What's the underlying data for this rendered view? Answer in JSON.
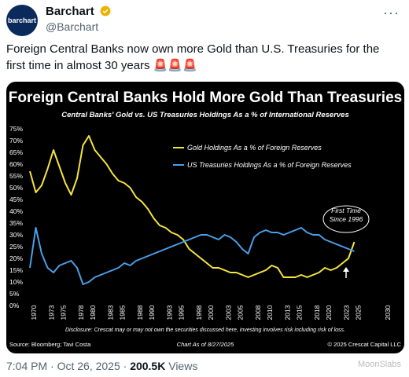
{
  "tweet": {
    "avatar_text": "barchart",
    "display_name": "Barchart",
    "handle": "@Barchart",
    "text": "Foreign Central Banks now own more Gold than U.S. Treasuries for the first time in almost 30 years",
    "emoji": "🚨🚨🚨",
    "timestamp": "7:04 PM · Oct 26, 2025 · ",
    "views_count": "200.5K",
    "views_label": " Views",
    "watermark": "MoonSlabs"
  },
  "colors": {
    "gold": "#f5e63a",
    "treasury": "#4a9fe8",
    "verified": "#e8b200"
  },
  "chart_data": {
    "type": "line",
    "title": "Foreign Central Banks Hold More Gold Than Treasuries",
    "subtitle": "Central Banks' Gold vs. US Treasuries Holdings As a % of International Reserves",
    "xlabel": "",
    "ylabel": "",
    "xlim": [
      1970,
      2030
    ],
    "ylim": [
      0,
      75
    ],
    "x_ticks": [
      "1970",
      "1973",
      "1975",
      "1978",
      "1980",
      "1983",
      "1985",
      "1988",
      "1990",
      "1993",
      "1995",
      "1998",
      "2000",
      "2003",
      "2005",
      "2008",
      "2010",
      "2013",
      "2015",
      "2018",
      "2020",
      "2023",
      "2025",
      "2030"
    ],
    "y_ticks": [
      "0%",
      "5%",
      "10%",
      "15%",
      "20%",
      "25%",
      "30%",
      "35%",
      "40%",
      "45%",
      "50%",
      "55%",
      "60%",
      "65%",
      "70%",
      "75%"
    ],
    "legend": [
      "Gold Holdings As a % of Foreign Reserves",
      "US Treasuries Holdings As a % of Foreign Reserves"
    ],
    "series": [
      {
        "name": "Gold Holdings As a % of Foreign Reserves",
        "points": [
          [
            1970,
            57
          ],
          [
            1971,
            48
          ],
          [
            1972,
            51
          ],
          [
            1973,
            58
          ],
          [
            1974,
            66
          ],
          [
            1975,
            59
          ],
          [
            1976,
            52
          ],
          [
            1977,
            47
          ],
          [
            1978,
            54
          ],
          [
            1979,
            68
          ],
          [
            1980,
            72
          ],
          [
            1981,
            66
          ],
          [
            1982,
            63
          ],
          [
            1983,
            60
          ],
          [
            1984,
            56
          ],
          [
            1985,
            53
          ],
          [
            1986,
            52
          ],
          [
            1987,
            50
          ],
          [
            1988,
            46
          ],
          [
            1989,
            44
          ],
          [
            1990,
            41
          ],
          [
            1991,
            37
          ],
          [
            1992,
            34
          ],
          [
            1993,
            33
          ],
          [
            1994,
            31
          ],
          [
            1995,
            30
          ],
          [
            1996,
            28
          ],
          [
            1997,
            24
          ],
          [
            1998,
            22
          ],
          [
            1999,
            20
          ],
          [
            2000,
            18
          ],
          [
            2001,
            16
          ],
          [
            2002,
            16
          ],
          [
            2003,
            15
          ],
          [
            2004,
            14
          ],
          [
            2005,
            14
          ],
          [
            2006,
            13
          ],
          [
            2007,
            12
          ],
          [
            2008,
            13
          ],
          [
            2009,
            14
          ],
          [
            2010,
            15
          ],
          [
            2011,
            17
          ],
          [
            2012,
            16
          ],
          [
            2013,
            12
          ],
          [
            2014,
            12
          ],
          [
            2015,
            12
          ],
          [
            2016,
            13
          ],
          [
            2017,
            12
          ],
          [
            2018,
            13
          ],
          [
            2019,
            14
          ],
          [
            2020,
            16
          ],
          [
            2021,
            15
          ],
          [
            2022,
            16
          ],
          [
            2023,
            18
          ],
          [
            2024,
            20
          ],
          [
            2025,
            27
          ]
        ]
      },
      {
        "name": "US Treasuries Holdings As a % of Foreign Reserves",
        "points": [
          [
            1970,
            16
          ],
          [
            1971,
            33
          ],
          [
            1972,
            22
          ],
          [
            1973,
            16
          ],
          [
            1974,
            14
          ],
          [
            1975,
            17
          ],
          [
            1976,
            18
          ],
          [
            1977,
            19
          ],
          [
            1978,
            16
          ],
          [
            1979,
            9
          ],
          [
            1980,
            10
          ],
          [
            1981,
            12
          ],
          [
            1982,
            13
          ],
          [
            1983,
            14
          ],
          [
            1984,
            15
          ],
          [
            1985,
            16
          ],
          [
            1986,
            18
          ],
          [
            1987,
            17
          ],
          [
            1988,
            19
          ],
          [
            1989,
            20
          ],
          [
            1990,
            21
          ],
          [
            1991,
            22
          ],
          [
            1992,
            23
          ],
          [
            1993,
            24
          ],
          [
            1994,
            25
          ],
          [
            1995,
            26
          ],
          [
            1996,
            27
          ],
          [
            1997,
            28
          ],
          [
            1998,
            29
          ],
          [
            1999,
            30
          ],
          [
            2000,
            30
          ],
          [
            2001,
            29
          ],
          [
            2002,
            28
          ],
          [
            2003,
            30
          ],
          [
            2004,
            29
          ],
          [
            2005,
            27
          ],
          [
            2006,
            24
          ],
          [
            2007,
            22
          ],
          [
            2008,
            29
          ],
          [
            2009,
            31
          ],
          [
            2010,
            32
          ],
          [
            2011,
            31
          ],
          [
            2012,
            31
          ],
          [
            2013,
            30
          ],
          [
            2014,
            31
          ],
          [
            2015,
            32
          ],
          [
            2016,
            33
          ],
          [
            2017,
            31
          ],
          [
            2018,
            30
          ],
          [
            2019,
            30
          ],
          [
            2020,
            28
          ],
          [
            2021,
            27
          ],
          [
            2022,
            26
          ],
          [
            2023,
            25
          ],
          [
            2024,
            24
          ],
          [
            2025,
            23
          ]
        ]
      }
    ],
    "annotation": "First Time Since 1996",
    "disclosure": "Disclosure: Crescat may or may not own the securities discussed here, investing involves risk including risk of loss.",
    "source": "Source: Bloomberg; Tavi Costa",
    "as_of": "Chart As of 8/27/2025",
    "copyright": "© 2025 Crescat Capital LLC"
  }
}
